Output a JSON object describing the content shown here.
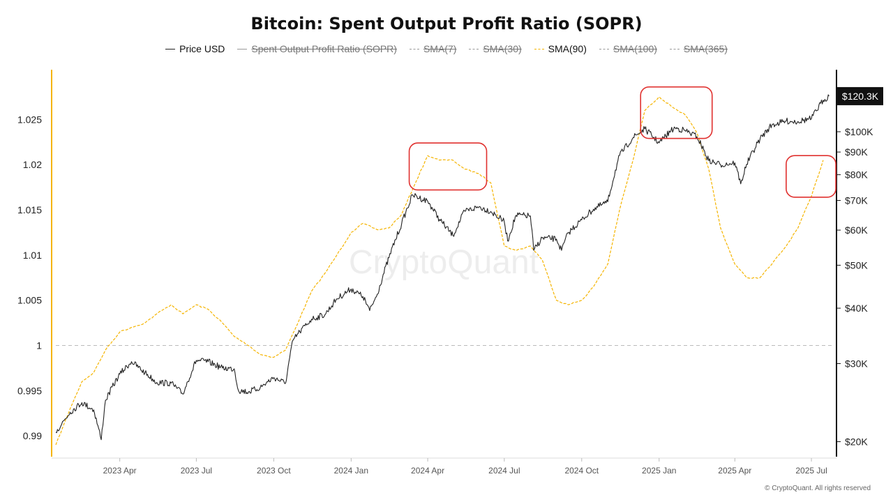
{
  "chart_data": {
    "type": "line",
    "title": "Bitcoin: Spent Output Profit Ratio (SOPR)",
    "legend": [
      {
        "name": "Price USD",
        "color": "#222222",
        "style": "solid",
        "active": true
      },
      {
        "name": "Spent Output Profit Ratio (SOPR)",
        "color": "#555555",
        "style": "solid",
        "active": false
      },
      {
        "name": "SMA(7)",
        "color": "#999999",
        "style": "dashed",
        "active": false
      },
      {
        "name": "SMA(30)",
        "color": "#999999",
        "style": "dashed",
        "active": false
      },
      {
        "name": "SMA(90)",
        "color": "#F5B400",
        "style": "dashed",
        "active": true
      },
      {
        "name": "SMA(100)",
        "color": "#999999",
        "style": "dashed",
        "active": false
      },
      {
        "name": "SMA(365)",
        "color": "#999999",
        "style": "dashed",
        "active": false
      }
    ],
    "x_range": [
      "2023-01-15",
      "2025-07-25"
    ],
    "x_ticks": [
      {
        "date": "2023-04-01",
        "label": "2023 Apr"
      },
      {
        "date": "2023-07-01",
        "label": "2023 Jul"
      },
      {
        "date": "2023-10-01",
        "label": "2023 Oct"
      },
      {
        "date": "2024-01-01",
        "label": "2024 Jan"
      },
      {
        "date": "2024-04-01",
        "label": "2024 Apr"
      },
      {
        "date": "2024-07-01",
        "label": "2024 Jul"
      },
      {
        "date": "2024-10-01",
        "label": "2024 Oct"
      },
      {
        "date": "2025-01-01",
        "label": "2025 Jan"
      },
      {
        "date": "2025-04-01",
        "label": "2025 Apr"
      },
      {
        "date": "2025-07-01",
        "label": "2025 Jul"
      }
    ],
    "y_left": {
      "range": [
        0.9877,
        1.0305
      ],
      "ticks": [
        {
          "value": 0.99,
          "label": "0.99"
        },
        {
          "value": 0.995,
          "label": "0.995"
        },
        {
          "value": 1.0,
          "label": "1"
        },
        {
          "value": 1.005,
          "label": "1.005"
        },
        {
          "value": 1.01,
          "label": "1.01"
        },
        {
          "value": 1.015,
          "label": "1.015"
        },
        {
          "value": 1.02,
          "label": "1.02"
        },
        {
          "value": 1.025,
          "label": "1.025"
        }
      ],
      "reference_line": 1.0
    },
    "y_right": {
      "scale": "log",
      "range": [
        18500,
        138000
      ],
      "ticks": [
        {
          "value": 20000,
          "label": "$20K"
        },
        {
          "value": 30000,
          "label": "$30K"
        },
        {
          "value": 40000,
          "label": "$40K"
        },
        {
          "value": 50000,
          "label": "$50K"
        },
        {
          "value": 60000,
          "label": "$60K"
        },
        {
          "value": 70000,
          "label": "$70K"
        },
        {
          "value": 80000,
          "label": "$80K"
        },
        {
          "value": 90000,
          "label": "$90K"
        },
        {
          "value": 100000,
          "label": "$100K"
        }
      ],
      "current_value": 120300,
      "current_label": "$120.3K"
    },
    "series": [
      {
        "name": "SMA(90)",
        "axis": "left",
        "color": "#F5B400",
        "points": [
          [
            "2023-01-15",
            0.989
          ],
          [
            "2023-02-01",
            0.993
          ],
          [
            "2023-02-15",
            0.996
          ],
          [
            "2023-03-01",
            0.997
          ],
          [
            "2023-03-15",
            0.9995
          ],
          [
            "2023-04-01",
            1.0015
          ],
          [
            "2023-04-15",
            1.002
          ],
          [
            "2023-05-01",
            1.0025
          ],
          [
            "2023-05-15",
            1.0035
          ],
          [
            "2023-06-01",
            1.0045
          ],
          [
            "2023-06-15",
            1.0035
          ],
          [
            "2023-07-01",
            1.0045
          ],
          [
            "2023-07-15",
            1.004
          ],
          [
            "2023-08-01",
            1.0025
          ],
          [
            "2023-08-15",
            1.001
          ],
          [
            "2023-09-01",
            1.0
          ],
          [
            "2023-09-15",
            0.999
          ],
          [
            "2023-10-01",
            0.9987
          ],
          [
            "2023-10-15",
            0.9995
          ],
          [
            "2023-11-01",
            1.003
          ],
          [
            "2023-11-15",
            1.006
          ],
          [
            "2023-12-01",
            1.008
          ],
          [
            "2023-12-15",
            1.01
          ],
          [
            "2024-01-01",
            1.0125
          ],
          [
            "2024-01-15",
            1.0135
          ],
          [
            "2024-02-01",
            1.0128
          ],
          [
            "2024-02-15",
            1.013
          ],
          [
            "2024-03-01",
            1.0145
          ],
          [
            "2024-03-15",
            1.0175
          ],
          [
            "2024-04-01",
            1.021
          ],
          [
            "2024-04-15",
            1.0205
          ],
          [
            "2024-05-01",
            1.0205
          ],
          [
            "2024-05-15",
            1.0195
          ],
          [
            "2024-06-01",
            1.019
          ],
          [
            "2024-06-15",
            1.018
          ],
          [
            "2024-07-01",
            1.011
          ],
          [
            "2024-07-15",
            1.0105
          ],
          [
            "2024-08-01",
            1.011
          ],
          [
            "2024-08-15",
            1.0095
          ],
          [
            "2024-09-01",
            1.005
          ],
          [
            "2024-09-15",
            1.0045
          ],
          [
            "2024-10-01",
            1.005
          ],
          [
            "2024-10-15",
            1.0065
          ],
          [
            "2024-11-01",
            1.009
          ],
          [
            "2024-11-15",
            1.015
          ],
          [
            "2024-12-01",
            1.0205
          ],
          [
            "2024-12-15",
            1.026
          ],
          [
            "2025-01-01",
            1.0275
          ],
          [
            "2025-01-15",
            1.0265
          ],
          [
            "2025-02-01",
            1.0255
          ],
          [
            "2025-02-15",
            1.0235
          ],
          [
            "2025-03-01",
            1.0195
          ],
          [
            "2025-03-15",
            1.013
          ],
          [
            "2025-04-01",
            1.009
          ],
          [
            "2025-04-15",
            1.0075
          ],
          [
            "2025-05-01",
            1.0075
          ],
          [
            "2025-05-15",
            1.009
          ],
          [
            "2025-06-01",
            1.011
          ],
          [
            "2025-06-15",
            1.013
          ],
          [
            "2025-07-01",
            1.0165
          ],
          [
            "2025-07-15",
            1.0205
          ]
        ]
      },
      {
        "name": "Price USD",
        "axis": "right",
        "color": "#222222",
        "points": [
          [
            "2023-01-15",
            21000
          ],
          [
            "2023-02-01",
            23300
          ],
          [
            "2023-02-15",
            24500
          ],
          [
            "2023-03-01",
            23600
          ],
          [
            "2023-03-10",
            20200
          ],
          [
            "2023-03-15",
            24800
          ],
          [
            "2023-04-01",
            28400
          ],
          [
            "2023-04-15",
            30300
          ],
          [
            "2023-05-01",
            28600
          ],
          [
            "2023-05-15",
            27200
          ],
          [
            "2023-06-01",
            27100
          ],
          [
            "2023-06-15",
            25600
          ],
          [
            "2023-07-01",
            30500
          ],
          [
            "2023-07-15",
            30300
          ],
          [
            "2023-08-01",
            29300
          ],
          [
            "2023-08-15",
            29200
          ],
          [
            "2023-08-20",
            26100
          ],
          [
            "2023-09-01",
            25900
          ],
          [
            "2023-09-15",
            26500
          ],
          [
            "2023-10-01",
            27900
          ],
          [
            "2023-10-15",
            27100
          ],
          [
            "2023-10-24",
            33900
          ],
          [
            "2023-11-01",
            35400
          ],
          [
            "2023-11-15",
            37800
          ],
          [
            "2023-12-01",
            38700
          ],
          [
            "2023-12-15",
            42000
          ],
          [
            "2024-01-01",
            44200
          ],
          [
            "2024-01-15",
            42500
          ],
          [
            "2024-01-23",
            39500
          ],
          [
            "2024-02-01",
            43000
          ],
          [
            "2024-02-15",
            52000
          ],
          [
            "2024-03-01",
            62000
          ],
          [
            "2024-03-14",
            72000
          ],
          [
            "2024-04-01",
            69700
          ],
          [
            "2024-04-15",
            63400
          ],
          [
            "2024-05-01",
            58300
          ],
          [
            "2024-05-15",
            66200
          ],
          [
            "2024-06-01",
            67700
          ],
          [
            "2024-06-15",
            66100
          ],
          [
            "2024-07-01",
            62700
          ],
          [
            "2024-07-05",
            56700
          ],
          [
            "2024-07-15",
            64800
          ],
          [
            "2024-08-01",
            64600
          ],
          [
            "2024-08-05",
            54000
          ],
          [
            "2024-08-15",
            57600
          ],
          [
            "2024-09-01",
            57300
          ],
          [
            "2024-09-07",
            54000
          ],
          [
            "2024-09-15",
            59100
          ],
          [
            "2024-10-01",
            63300
          ],
          [
            "2024-10-15",
            66900
          ],
          [
            "2024-11-01",
            69500
          ],
          [
            "2024-11-15",
            88400
          ],
          [
            "2024-12-01",
            97000
          ],
          [
            "2024-12-15",
            101500
          ],
          [
            "2025-01-01",
            94400
          ],
          [
            "2025-01-15",
            100500
          ],
          [
            "2025-01-20",
            102000
          ],
          [
            "2025-02-01",
            100600
          ],
          [
            "2025-02-15",
            97500
          ],
          [
            "2025-03-01",
            86000
          ],
          [
            "2025-03-15",
            84300
          ],
          [
            "2025-04-01",
            85100
          ],
          [
            "2025-04-08",
            76300
          ],
          [
            "2025-04-15",
            84500
          ],
          [
            "2025-05-01",
            96400
          ],
          [
            "2025-05-15",
            103600
          ],
          [
            "2025-06-01",
            105700
          ],
          [
            "2025-06-15",
            105500
          ],
          [
            "2025-07-01",
            107100
          ],
          [
            "2025-07-15",
            117800
          ],
          [
            "2025-07-22",
            120300
          ]
        ]
      }
    ],
    "annotations": [
      {
        "type": "box",
        "x": [
          "2024-03-10",
          "2024-06-10"
        ],
        "y": [
          1.0172,
          1.0224
        ],
        "color": "#E0312F"
      },
      {
        "type": "box",
        "x": [
          "2024-12-10",
          "2025-03-05"
        ],
        "y": [
          1.0229,
          1.0286
        ],
        "color": "#E0312F"
      },
      {
        "type": "box",
        "x": [
          "2025-06-01",
          "2025-07-30"
        ],
        "y": [
          1.0164
        ],
        "y_top": 1.021,
        "color": "#E0312F"
      }
    ],
    "watermark": "CryptoQuant"
  },
  "copyright": "© CryptoQuant. All rights reserved"
}
